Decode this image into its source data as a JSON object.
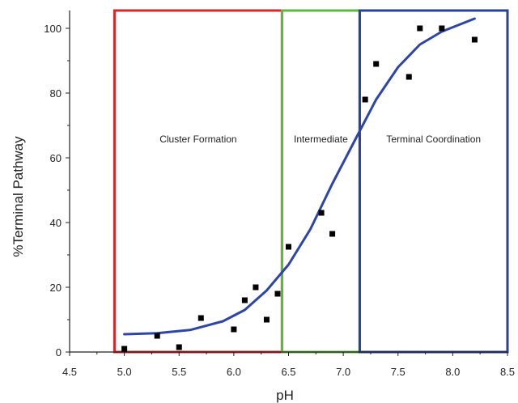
{
  "chart_data": {
    "type": "scatter",
    "xlabel": "pH",
    "ylabel": "%Terminal Pathway",
    "xlim": [
      4.5,
      8.5
    ],
    "ylim": [
      0,
      105
    ],
    "xticks": [
      "4.5",
      "5.0",
      "5.5",
      "6.0",
      "6.5",
      "7.0",
      "7.5",
      "8.0",
      "8.5"
    ],
    "yticks": [
      "0",
      "20",
      "40",
      "60",
      "80",
      "100"
    ],
    "grid": false,
    "points": {
      "x": [
        5.0,
        5.3,
        5.5,
        5.7,
        6.0,
        6.1,
        6.2,
        6.3,
        6.4,
        6.5,
        6.8,
        6.9,
        7.2,
        7.3,
        7.6,
        7.7,
        7.9,
        8.2
      ],
      "y": [
        1,
        5,
        1.5,
        10.5,
        7,
        16,
        20,
        10,
        18,
        32.5,
        43,
        36.5,
        78,
        89,
        85,
        100,
        100,
        96.5
      ]
    },
    "fit_curve": {
      "x": [
        5.0,
        5.3,
        5.6,
        5.9,
        6.1,
        6.3,
        6.5,
        6.7,
        6.9,
        7.1,
        7.3,
        7.5,
        7.7,
        7.9,
        8.2
      ],
      "y": [
        5.5,
        5.8,
        6.8,
        9.5,
        13,
        19,
        27,
        38,
        52,
        65,
        78,
        88,
        95,
        99,
        103
      ],
      "color": "#2e45a8"
    },
    "regions": [
      {
        "label": "Cluster Formation",
        "x_range": [
          4.91,
          6.44
        ],
        "color": "#d9262b"
      },
      {
        "label": "Intermediate",
        "x_range": [
          6.44,
          7.15
        ],
        "color": "#5db83f"
      },
      {
        "label": "Terminal Coordination",
        "x_range": [
          7.15,
          8.5
        ],
        "color": "#2b3f9c"
      }
    ]
  }
}
